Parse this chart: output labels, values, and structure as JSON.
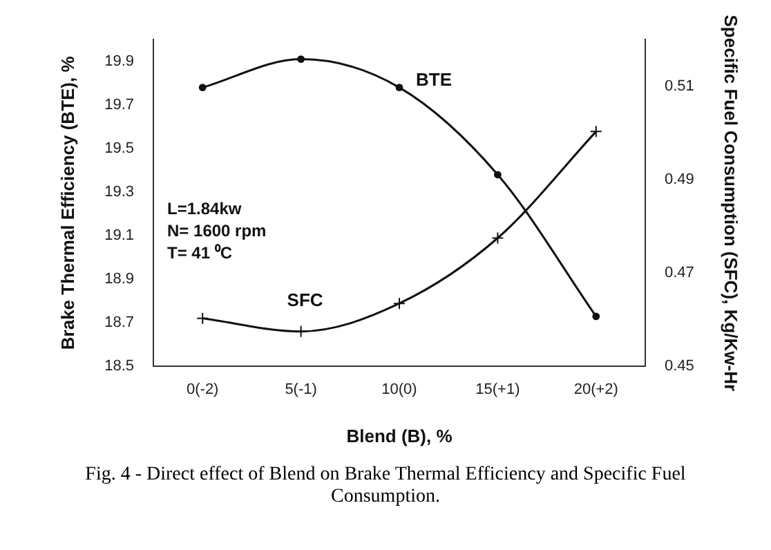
{
  "chart_data": {
    "type": "line",
    "xlabel": "Blend (B), %",
    "ylabel": "Brake Thermal Efficiency (BTE), %",
    "y2label": "Specific Fuel Consumption (SFC), Kg/Kw-Hr",
    "categories": [
      "0(-2)",
      "5(-1)",
      "10(0)",
      "15(+1)",
      "20(+2)"
    ],
    "series": [
      {
        "name": "BTE",
        "color": "#111111",
        "marker": "circle",
        "values": [
          19.78,
          19.91,
          19.78,
          19.38,
          18.73
        ]
      },
      {
        "name": "SFC",
        "color": "#111111",
        "marker": "cross",
        "axis": "y2",
        "values": [
          0.4603,
          0.4575,
          0.4635,
          0.4775,
          0.5003
        ]
      }
    ],
    "ylim": [
      18.5,
      20.0
    ],
    "yticks": [
      18.5,
      18.7,
      18.9,
      19.1,
      19.3,
      19.5,
      19.7,
      19.9
    ],
    "y2lim": [
      0.45,
      0.52
    ],
    "y2ticks": [
      0.45,
      0.47,
      0.49,
      0.51
    ],
    "grid": false,
    "legend": false,
    "line_style": "solid",
    "annotations": [
      "L=1.84kw",
      "N= 1600 rpm",
      "T= 41 ⁰C",
      "Fig. 4 - Direct effect of Blend on Brake Thermal Efficiency and Specific Fuel Consumption."
    ]
  }
}
